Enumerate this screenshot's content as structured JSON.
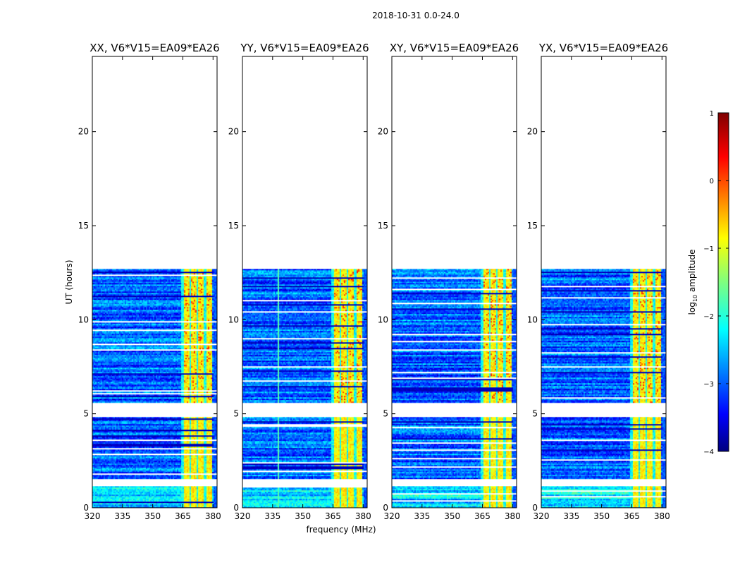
{
  "suptitle": "2018-10-31 0.0-24.0",
  "chart_data": {
    "type": "heatmap",
    "xlabel": "frequency (MHz)",
    "ylabel": "UT (hours)",
    "xlim": [
      320,
      382
    ],
    "ylim": [
      0,
      24
    ],
    "xticks": [
      320,
      335,
      350,
      365,
      380
    ],
    "yticks": [
      0,
      5,
      10,
      15,
      20
    ],
    "data_extent_ut": [
      0,
      12.7
    ],
    "gaps_ut": [
      [
        1.2,
        1.6
      ],
      [
        4.85,
        5.65
      ]
    ],
    "bright_band_mhz": [
      364,
      379
    ],
    "panels": [
      {
        "id": "xx",
        "title": "XX, V6*V15=EA09*EA26"
      },
      {
        "id": "yy",
        "title": "YY, V6*V15=EA09*EA26"
      },
      {
        "id": "xy",
        "title": "XY, V6*V15=EA09*EA26"
      },
      {
        "id": "yx",
        "title": "YX, V6*V15=EA09*EA26"
      }
    ],
    "colorbar": {
      "label": "log10 amplitude",
      "label_main": "log",
      "label_sub": "10",
      "label_rest": " amplitude",
      "range": [
        -4,
        1
      ],
      "ticks": [
        "1",
        "0",
        "−1",
        "−2",
        "−3",
        "−4"
      ],
      "colormap": "jet"
    }
  }
}
